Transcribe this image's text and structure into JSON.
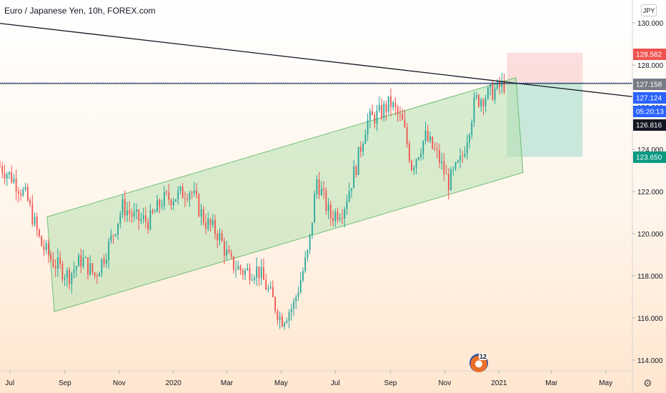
{
  "title": "Euro / Japanese Yen, 10h, FOREX.com",
  "currency": "JPY",
  "logo_number": "12",
  "colors": {
    "up": "#26a69a",
    "down": "#ef5350",
    "channel_fill": "#b6e0b0",
    "channel_stroke": "#6fbf73",
    "stop_zone": "#f8c9c9",
    "target_zone": "#b7e1d3",
    "trendline": "#131722"
  },
  "price_tags": [
    {
      "label": "128.582",
      "value": 128.582,
      "color": "#ef5350"
    },
    {
      "label": "127.158",
      "value": 127.158,
      "color": "#787b86"
    },
    {
      "label": "127.124",
      "value": 127.124,
      "color": "#2962ff"
    },
    {
      "label": "05:20:13",
      "value": 126.97,
      "color": "#2962ff"
    },
    {
      "label": "126.816",
      "value": 126.816,
      "color": "#131722"
    },
    {
      "label": "123.650",
      "value": 123.65,
      "color": "#089981"
    }
  ],
  "chart_data": {
    "type": "candlestick",
    "title": "Euro / Japanese Yen, 10h, FOREX.com",
    "y_ticks": [
      {
        "value": 114,
        "label": "114.000"
      },
      {
        "value": 116,
        "label": "116.000"
      },
      {
        "value": 118,
        "label": "118.000"
      },
      {
        "value": 120,
        "label": "120.000"
      },
      {
        "value": 122,
        "label": "122.000"
      },
      {
        "value": 124,
        "label": "124.000"
      },
      {
        "value": 126,
        "label": "126.000"
      },
      {
        "value": 128,
        "label": "128.000"
      },
      {
        "value": 130,
        "label": "130.000"
      }
    ],
    "x_ticks": [
      {
        "date": "2019-07-01",
        "label": "Jul"
      },
      {
        "date": "2019-09-01",
        "label": "Sep"
      },
      {
        "date": "2019-11-01",
        "label": "Nov"
      },
      {
        "date": "2020-01-01",
        "label": "2020"
      },
      {
        "date": "2020-03-01",
        "label": "Mar"
      },
      {
        "date": "2020-05-01",
        "label": "May"
      },
      {
        "date": "2020-07-01",
        "label": "Jul"
      },
      {
        "date": "2020-09-01",
        "label": "Sep"
      },
      {
        "date": "2020-11-01",
        "label": "Nov"
      },
      {
        "date": "2021-01-01",
        "label": "2021"
      },
      {
        "date": "2021-03-01",
        "label": "Mar"
      },
      {
        "date": "2021-05-01",
        "label": "May"
      }
    ],
    "x_range": [
      "2019-06-20",
      "2021-05-31"
    ],
    "y_range": [
      113.5,
      131.0
    ],
    "price_path": [
      [
        "2019-06-20",
        123.2
      ],
      [
        "2019-07-05",
        122.6
      ],
      [
        "2019-07-20",
        121.7
      ],
      [
        "2019-08-05",
        119.5
      ],
      [
        "2019-08-20",
        118.6
      ],
      [
        "2019-09-05",
        118.0
      ],
      [
        "2019-09-20",
        118.8
      ],
      [
        "2019-10-05",
        118.0
      ],
      [
        "2019-10-20",
        119.4
      ],
      [
        "2019-11-05",
        121.3
      ],
      [
        "2019-11-20",
        120.7
      ],
      [
        "2019-12-05",
        120.6
      ],
      [
        "2019-12-20",
        121.6
      ],
      [
        "2020-01-05",
        121.8
      ],
      [
        "2020-01-20",
        122.1
      ],
      [
        "2020-02-05",
        120.6
      ],
      [
        "2020-02-20",
        120.0
      ],
      [
        "2020-03-05",
        118.6
      ],
      [
        "2020-03-20",
        118.2
      ],
      [
        "2020-04-05",
        118.3
      ],
      [
        "2020-04-20",
        117.0
      ],
      [
        "2020-05-01",
        115.9
      ],
      [
        "2020-05-15",
        116.6
      ],
      [
        "2020-06-01",
        119.2
      ],
      [
        "2020-06-10",
        122.6
      ],
      [
        "2020-06-25",
        120.8
      ],
      [
        "2020-07-10",
        121.2
      ],
      [
        "2020-07-25",
        123.3
      ],
      [
        "2020-08-05",
        125.3
      ],
      [
        "2020-08-20",
        125.7
      ],
      [
        "2020-09-01",
        126.2
      ],
      [
        "2020-09-15",
        125.2
      ],
      [
        "2020-09-25",
        123.2
      ],
      [
        "2020-10-10",
        124.6
      ],
      [
        "2020-10-25",
        123.6
      ],
      [
        "2020-11-05",
        122.4
      ],
      [
        "2020-11-20",
        123.5
      ],
      [
        "2020-12-05",
        126.3
      ],
      [
        "2020-12-20",
        126.6
      ],
      [
        "2021-01-07",
        127.1
      ]
    ],
    "channel": [
      [
        "2019-08-12",
        120.8
      ],
      [
        "2021-01-20",
        127.4
      ],
      [
        "2021-01-28",
        122.9
      ],
      [
        "2019-08-20",
        116.3
      ]
    ],
    "trendline": [
      [
        "2019-06-15",
        130.0
      ],
      [
        "2021-05-31",
        126.5
      ]
    ],
    "horizontal_lines": [
      {
        "value": 127.124,
        "style": "solid"
      },
      {
        "value": 127.158,
        "style": "dotted"
      }
    ],
    "position": {
      "start": "2021-01-10",
      "end": "2021-04-05",
      "entry": 127.158,
      "stop": 128.582,
      "target": 123.65
    }
  }
}
